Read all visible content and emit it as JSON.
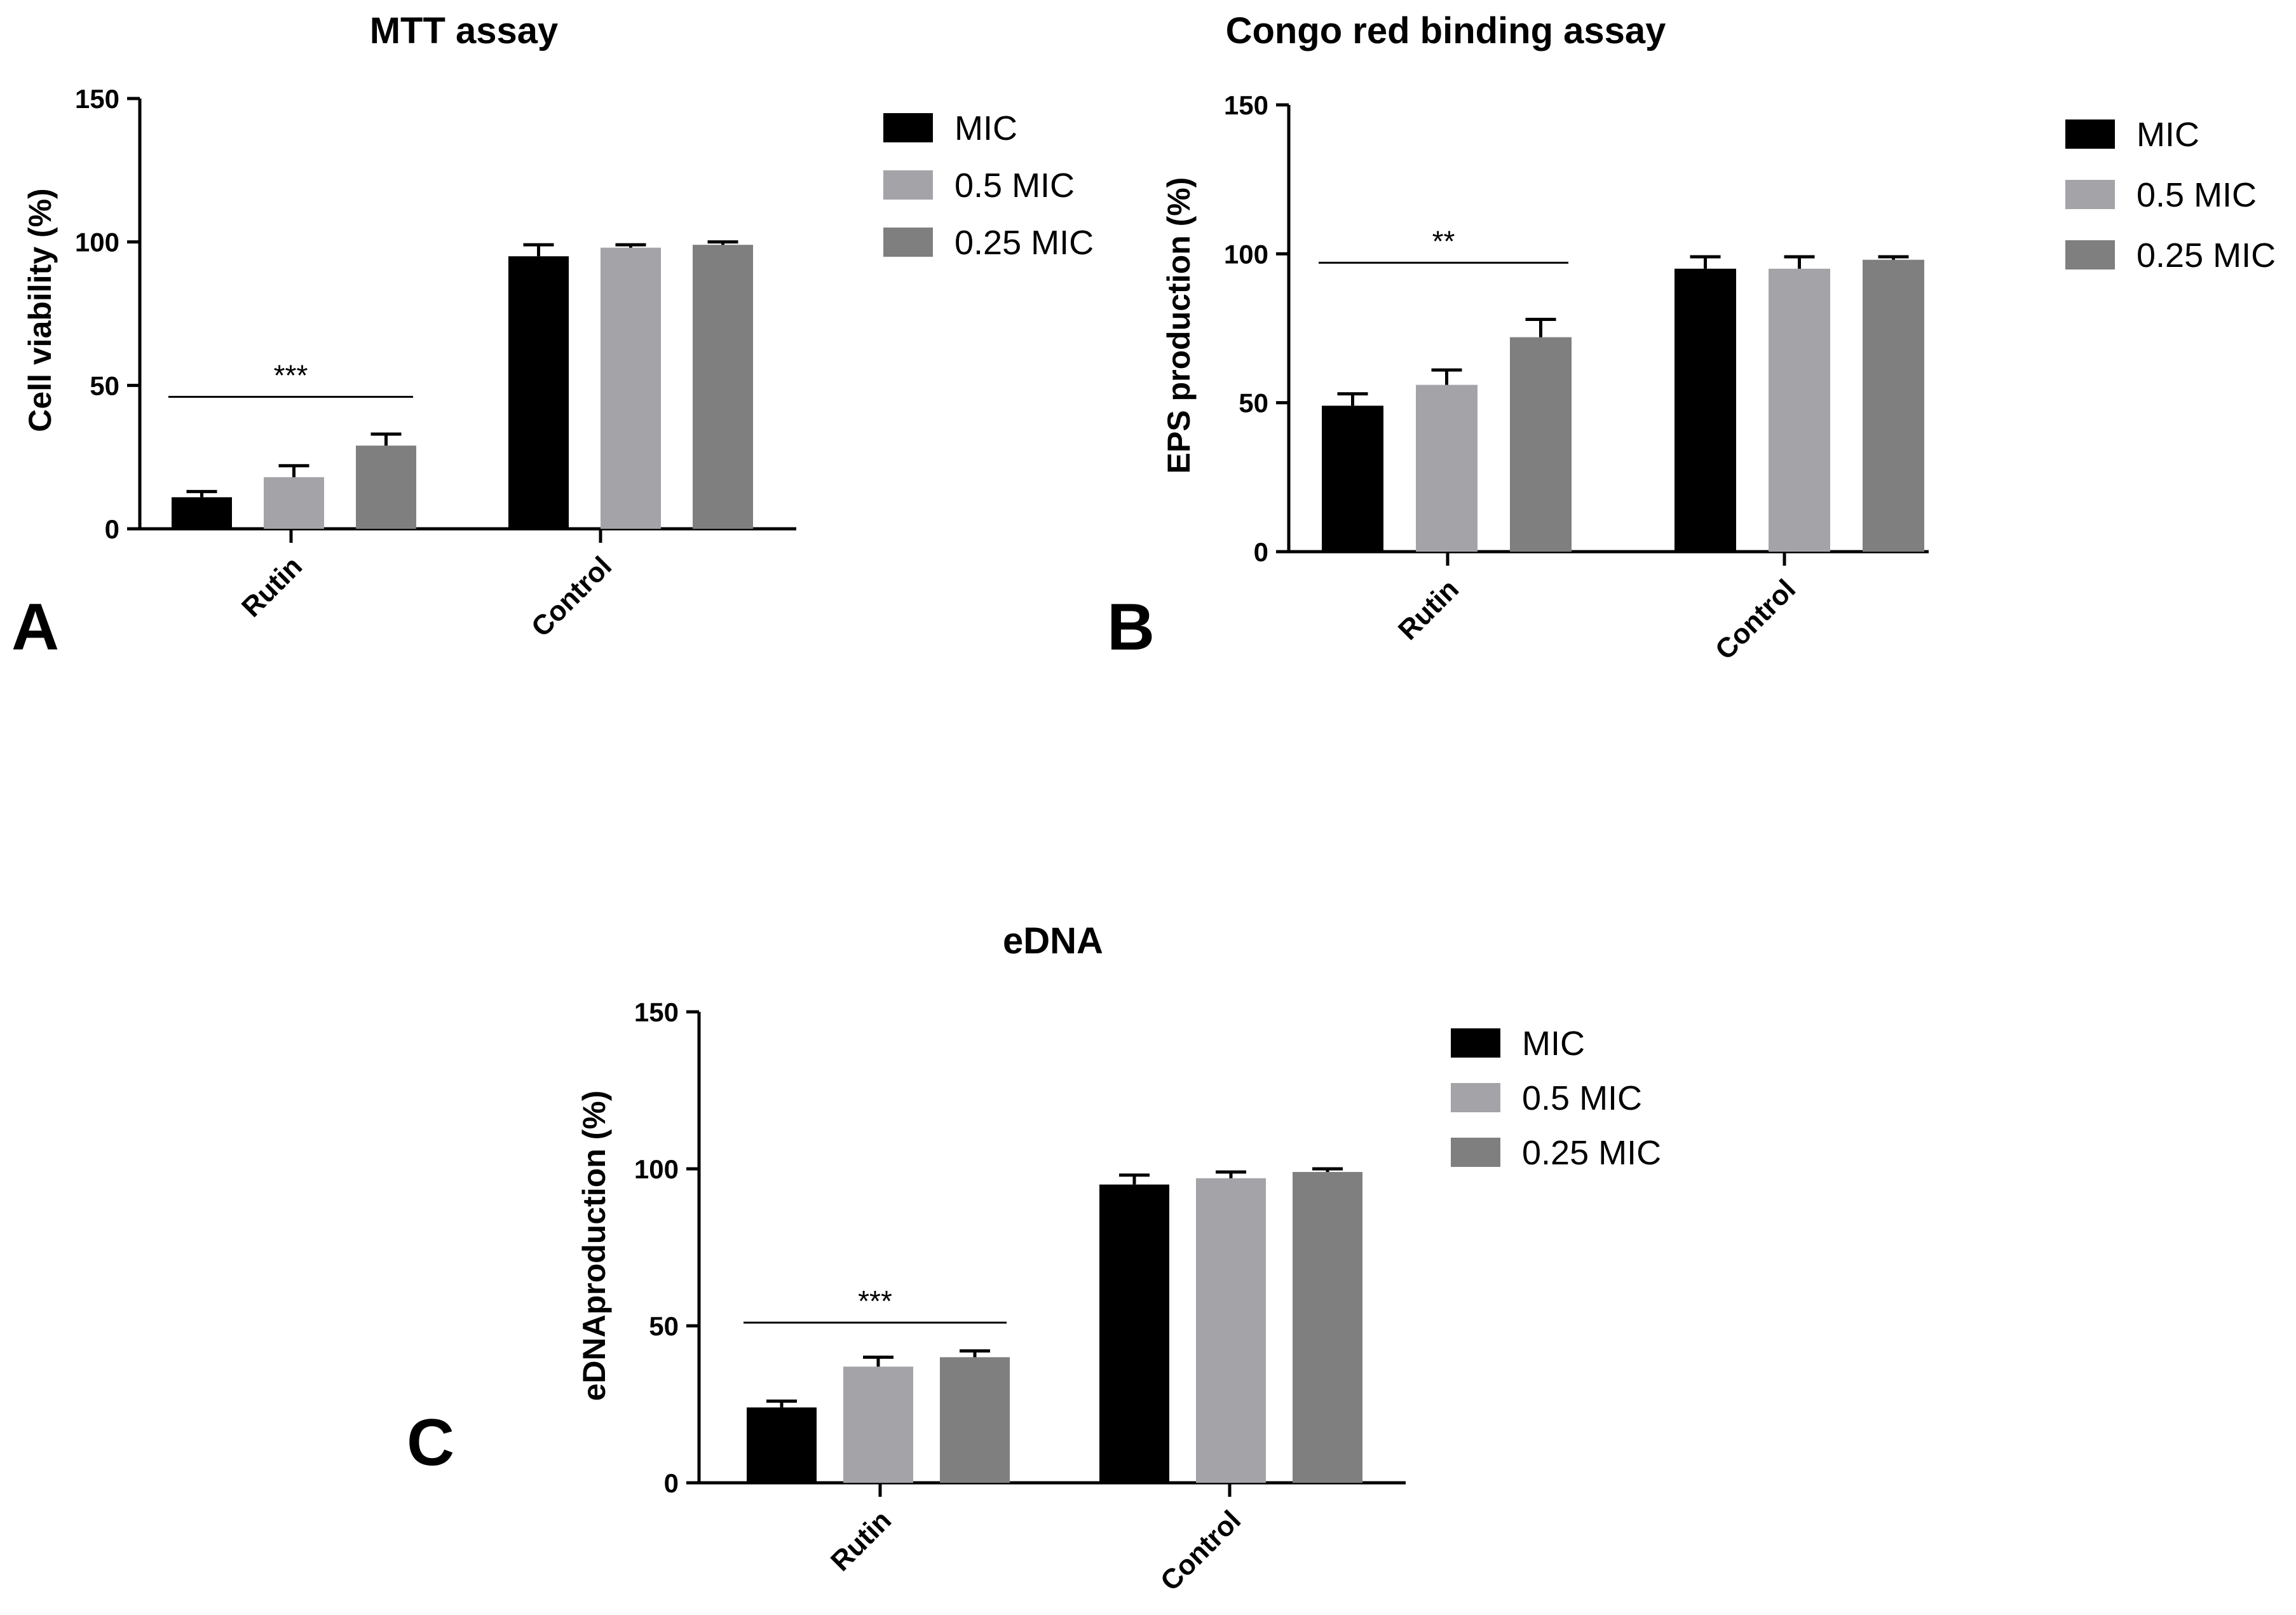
{
  "chart_data": [
    {
      "type": "bar",
      "panel_label": "A",
      "title": "MTT assay",
      "ylabel": "Cell viability (%)",
      "xlabel": "",
      "ylim": [
        0,
        150
      ],
      "yticks": [
        "0",
        "50",
        "100",
        "150"
      ],
      "categories": [
        "Rutin",
        "Control"
      ],
      "series": [
        {
          "name": "MIC",
          "values": [
            11,
            95
          ],
          "errors": [
            2,
            4
          ],
          "color": "#000000"
        },
        {
          "name": "0.5 MIC",
          "values": [
            18,
            98
          ],
          "errors": [
            4,
            1
          ],
          "color": "#a3a3a8"
        },
        {
          "name": "0.25 MIC",
          "values": [
            29,
            99
          ],
          "errors": [
            4,
            1
          ],
          "color": "#7f7f7f"
        }
      ],
      "significance": {
        "category": "Rutin",
        "label": "***",
        "at": 46
      },
      "legend_position": "top-right"
    },
    {
      "type": "bar",
      "panel_label": "B",
      "title": "Congo red binding assay",
      "ylabel": "EPS production (%)",
      "xlabel": "",
      "ylim": [
        0,
        150
      ],
      "yticks": [
        "0",
        "50",
        "100",
        "150"
      ],
      "categories": [
        "Rutin",
        "Control"
      ],
      "series": [
        {
          "name": "MIC",
          "values": [
            49,
            95
          ],
          "errors": [
            4,
            4
          ],
          "color": "#000000"
        },
        {
          "name": "0.5 MIC",
          "values": [
            56,
            95
          ],
          "errors": [
            5,
            4
          ],
          "color": "#a3a3a8"
        },
        {
          "name": "0.25 MIC",
          "values": [
            72,
            98
          ],
          "errors": [
            6,
            1
          ],
          "color": "#7f7f7f"
        }
      ],
      "significance": {
        "category": "Rutin",
        "label": "**",
        "at": 97
      },
      "legend_position": "top-right"
    },
    {
      "type": "bar",
      "panel_label": "C",
      "title": "eDNA",
      "ylabel": "eDNAproduction (%)",
      "xlabel": "",
      "ylim": [
        0,
        150
      ],
      "yticks": [
        "0",
        "50",
        "100",
        "150"
      ],
      "categories": [
        "Rutin",
        "Control"
      ],
      "series": [
        {
          "name": "MIC",
          "values": [
            24,
            95
          ],
          "errors": [
            2,
            3
          ],
          "color": "#000000"
        },
        {
          "name": "0.5 MIC",
          "values": [
            37,
            97
          ],
          "errors": [
            3,
            2
          ],
          "color": "#a3a3a8"
        },
        {
          "name": "0.25 MIC",
          "values": [
            40,
            99
          ],
          "errors": [
            2,
            1
          ],
          "color": "#7f7f7f"
        }
      ],
      "significance": {
        "category": "Rutin",
        "label": "***",
        "at": 51
      },
      "legend_position": "top-right"
    }
  ]
}
